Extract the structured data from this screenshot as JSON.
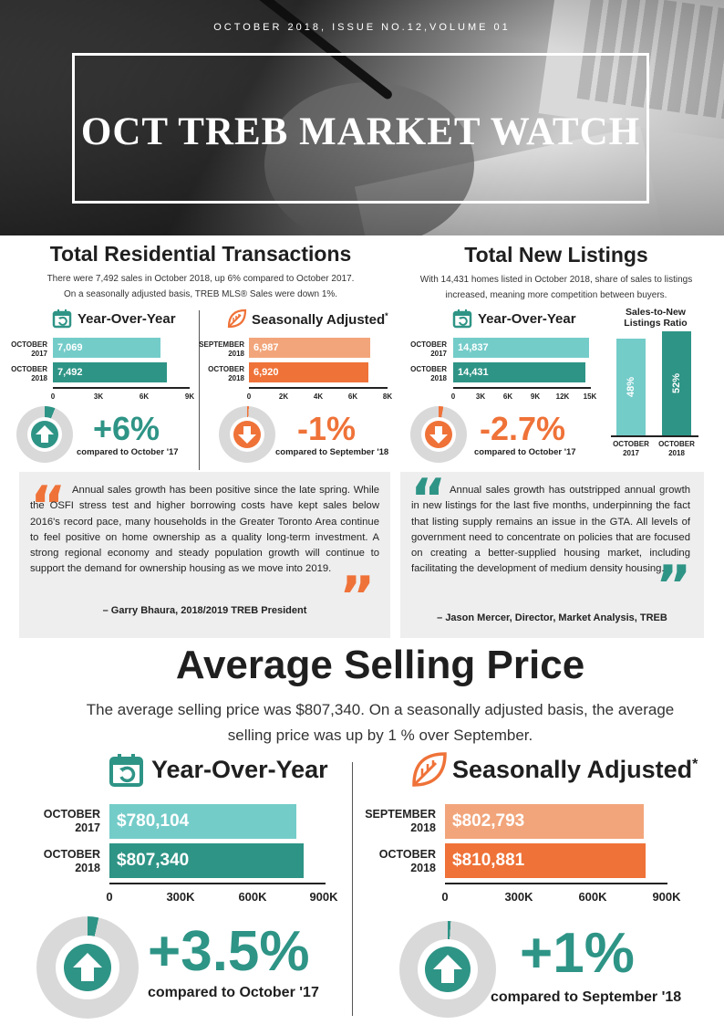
{
  "header": {
    "issue": "OCTOBER 2018, ISSUE NO.12,VOLUME 01",
    "title": "OCT TREB MARKET WATCH"
  },
  "colors": {
    "teal_light": "#74ccc9",
    "teal_dark": "#2e9486",
    "orange_light": "#f2a57b",
    "orange_dark": "#ef7238",
    "quote_bg": "#eeeeee"
  },
  "transactions": {
    "title": "Total Residential Transactions",
    "subtitle_line1": "There were 7,492 sales in October 2018, up 6% compared to October 2017.",
    "subtitle_line2": "On a seasonally adjusted basis, TREB MLS® Sales were down 1%.",
    "yoy": {
      "heading": "Year-Over-Year",
      "icon": "calendar-refresh-icon",
      "labels": [
        [
          "OCTOBER",
          "2017"
        ],
        [
          "OCTOBER",
          "2018"
        ]
      ],
      "bar_labels": [
        "7,069",
        "7,492"
      ],
      "ticks": [
        "0",
        "3K",
        "6K",
        "9K"
      ],
      "change": "+6%",
      "compare": "compared to October '17",
      "direction": "up"
    },
    "sa": {
      "heading": "Seasonally Adjusted",
      "asterisk": "*",
      "icon": "leaf-icon",
      "labels": [
        [
          "SEPTEMBER",
          "2018"
        ],
        [
          "OCTOBER",
          "2018"
        ]
      ],
      "bar_labels": [
        "6,987",
        "6,920"
      ],
      "ticks": [
        "0",
        "2K",
        "4K",
        "6K",
        "8K"
      ],
      "change": "-1%",
      "compare": "compared to September '18",
      "direction": "down"
    }
  },
  "listings": {
    "title": "Total New Listings",
    "subtitle_line1": "With 14,431 homes listed in October 2018, share of sales to listings",
    "subtitle_line2": "increased, meaning more competition between buyers.",
    "yoy": {
      "heading": "Year-Over-Year",
      "icon": "calendar-refresh-icon",
      "labels": [
        [
          "OCTOBER",
          "2017"
        ],
        [
          "OCTOBER",
          "2018"
        ]
      ],
      "bar_labels": [
        "14,837",
        "14,431"
      ],
      "ticks": [
        "0",
        "3K",
        "6K",
        "9K",
        "12K",
        "15K"
      ],
      "change": "-2.7%",
      "compare": "compared to October '17",
      "direction": "down"
    },
    "ratio": {
      "title_line1": "Sales-to-New",
      "title_line2": "Listings Ratio",
      "bar_labels": [
        "48%",
        "52%"
      ],
      "labels": [
        [
          "OCTOBER",
          "2017"
        ],
        [
          "OCTOBER",
          "2018"
        ]
      ]
    }
  },
  "quote1": {
    "text": "Annual sales growth has been positive since the late spring. While the OSFI stress test and higher borrowing costs have kept sales below 2016's record pace, many households in the Greater Toronto Area continue to feel positive on home ownership as a quality long-term investment. A strong regional economy and steady population growth will continue to support the demand for ownership housing as we move into 2019.",
    "attribution": "– Garry Bhaura, 2018/2019 TREB President"
  },
  "quote2": {
    "text": "Annual sales growth has outstripped annual growth in new listings for the last five months, underpinning the fact that listing supply remains an issue in the GTA. All levels of government need to concentrate on policies that are focused on creating a better-supplied housing market, including facilitating the development of medium density housing.",
    "attribution": "– Jason Mercer, Director, Market Analysis, TREB"
  },
  "price": {
    "title": "Average Selling Price",
    "subtitle_line1": "The average selling price was $807,340. On a seasonally adjusted basis, the average",
    "subtitle_line2": "selling price was up by 1 % over September.",
    "yoy": {
      "heading": "Year-Over-Year",
      "icon": "calendar-refresh-icon",
      "labels": [
        [
          "OCTOBER",
          "2017"
        ],
        [
          "OCTOBER",
          "2018"
        ]
      ],
      "bar_labels": [
        "$780,104",
        "$807,340"
      ],
      "ticks": [
        "0",
        "300K",
        "600K",
        "900K"
      ],
      "change": "+3.5%",
      "compare": "compared to October '17",
      "direction": "up"
    },
    "sa": {
      "heading": "Seasonally Adjusted",
      "asterisk": "*",
      "icon": "leaf-icon",
      "labels": [
        [
          "SEPTEMBER",
          "2018"
        ],
        [
          "OCTOBER",
          "2018"
        ]
      ],
      "bar_labels": [
        "$802,793",
        "$810,881"
      ],
      "ticks": [
        "0",
        "300K",
        "600K",
        "900K"
      ],
      "change": "+1%",
      "compare": "compared to September '18",
      "direction": "up"
    }
  },
  "chart_data": [
    {
      "type": "bar",
      "title": "Total Residential Transactions – Year-Over-Year",
      "categories": [
        "OCTOBER 2017",
        "OCTOBER 2018"
      ],
      "values": [
        7069,
        7492
      ],
      "xlim": [
        0,
        9000
      ]
    },
    {
      "type": "bar",
      "title": "Total Residential Transactions – Seasonally Adjusted",
      "categories": [
        "SEPTEMBER 2018",
        "OCTOBER 2018"
      ],
      "values": [
        6987,
        6920
      ],
      "xlim": [
        0,
        8000
      ]
    },
    {
      "type": "bar",
      "title": "Total New Listings – Year-Over-Year",
      "categories": [
        "OCTOBER 2017",
        "OCTOBER 2018"
      ],
      "values": [
        14837,
        14431
      ],
      "xlim": [
        0,
        15000
      ]
    },
    {
      "type": "bar",
      "title": "Sales-to-New Listings Ratio",
      "categories": [
        "OCTOBER 2017",
        "OCTOBER 2018"
      ],
      "values": [
        48,
        52
      ],
      "ylim": [
        0,
        100
      ]
    },
    {
      "type": "bar",
      "title": "Average Selling Price – Year-Over-Year",
      "categories": [
        "OCTOBER 2017",
        "OCTOBER 2018"
      ],
      "values": [
        780104,
        807340
      ],
      "xlim": [
        0,
        900000
      ]
    },
    {
      "type": "bar",
      "title": "Average Selling Price – Seasonally Adjusted",
      "categories": [
        "SEPTEMBER 2018",
        "OCTOBER 2018"
      ],
      "values": [
        802793,
        810881
      ],
      "xlim": [
        0,
        900000
      ]
    },
    {
      "type": "pie",
      "title": "Transactions YoY change",
      "values": [
        6,
        94
      ]
    },
    {
      "type": "pie",
      "title": "Transactions SA change",
      "values": [
        1,
        99
      ]
    },
    {
      "type": "pie",
      "title": "Listings YoY change",
      "values": [
        2.7,
        97.3
      ]
    },
    {
      "type": "pie",
      "title": "Price YoY change",
      "values": [
        3.5,
        96.5
      ]
    },
    {
      "type": "pie",
      "title": "Price SA change",
      "values": [
        1,
        99
      ]
    }
  ]
}
